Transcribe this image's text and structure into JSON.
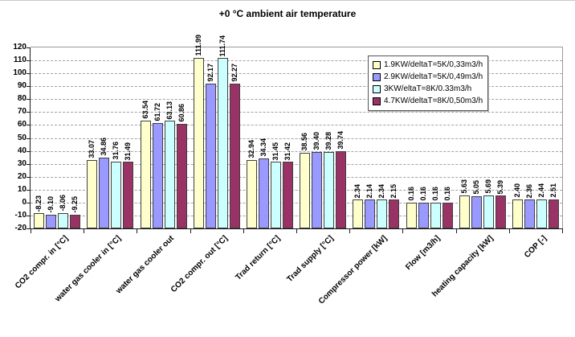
{
  "chart_data": {
    "type": "bar",
    "title": "+0 °C ambient air temperature",
    "categories": [
      "CO2 compr. in [°C]",
      "water gas cooler in [°C]",
      "water gas cooler out",
      "CO2 compr. out [°C]",
      "Trad return [°C]",
      "Trad supply [°C]",
      "Compressor power [kW]",
      "Flow [m3/h]",
      "heating capacity [kW]",
      "COP [-]"
    ],
    "series": [
      {
        "name": "1.9KW/deltaT=5K/0,33m3/h",
        "color": "#FFFFCC",
        "values": [
          -8.23,
          33.07,
          63.54,
          111.99,
          32.94,
          38.56,
          2.34,
          0.16,
          5.63,
          2.4
        ]
      },
      {
        "name": "2.9KW/deltaT=5K/0,49m3/h",
        "color": "#9999FF",
        "values": [
          -9.1,
          34.86,
          61.72,
          92.17,
          34.34,
          39.4,
          2.14,
          0.16,
          5.05,
          2.36
        ]
      },
      {
        "name": "3KW/eltaT=8K/0.33m3/h",
        "color": "#CCFFFF",
        "values": [
          -8.06,
          31.76,
          63.13,
          111.74,
          31.45,
          39.28,
          2.34,
          0.16,
          5.69,
          2.44
        ]
      },
      {
        "name": "4.7KW/deltaT=8K/0,50m3/h",
        "color": "#993366",
        "values": [
          -9.25,
          31.49,
          60.86,
          92.27,
          31.42,
          39.74,
          2.15,
          0.16,
          5.39,
          2.51
        ]
      }
    ],
    "y_axis": {
      "min": -20,
      "max": 120,
      "step": 10,
      "tick_labels": [
        "120",
        "110",
        "100",
        "90",
        "80",
        "70",
        "60",
        "50",
        "40",
        "30",
        "20",
        "10",
        "0",
        "-10",
        "-20"
      ]
    },
    "bar_base": -20,
    "value_label_decimals": 2,
    "grid": "dashed horizontal",
    "legend_position": "top-right-inside",
    "colors": {
      "bar_border": "#404040",
      "gridline": "#a3a3a3",
      "axis": "#1a1a1a",
      "plot_border": "#9a9a9a",
      "background": "#ffffff"
    }
  }
}
